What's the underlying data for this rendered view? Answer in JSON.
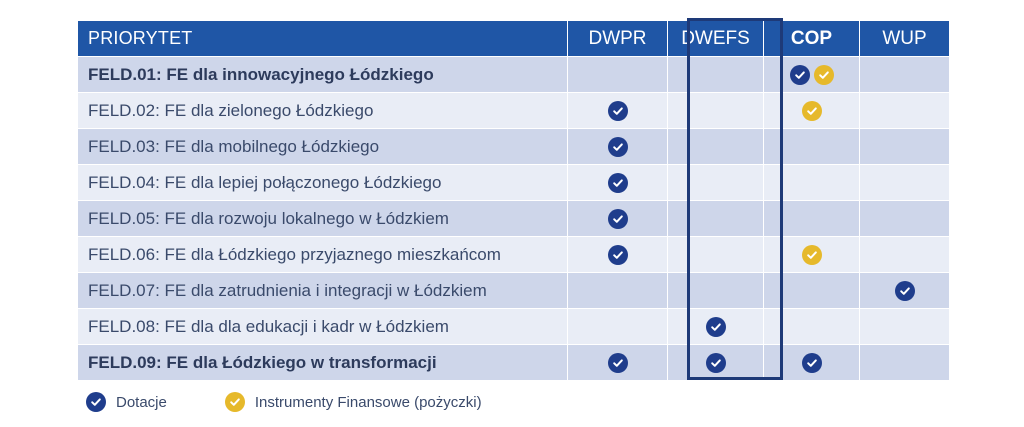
{
  "header": {
    "priorytet": "PRIORYTET",
    "dwpr": "DWPR",
    "dwefs": "DWEFS",
    "cop": "COP",
    "wup": "WUP"
  },
  "rows": [
    {
      "name": "FELD.01: FE dla innowacyjnego Łódzkiego",
      "bold": true,
      "dwpr": [],
      "dwefs": [],
      "cop": [
        "blue",
        "gold"
      ],
      "wup": []
    },
    {
      "name": "FELD.02: FE dla zielonego Łódzkiego",
      "bold": false,
      "dwpr": [
        "blue"
      ],
      "dwefs": [],
      "cop": [
        "gold"
      ],
      "wup": []
    },
    {
      "name": "FELD.03: FE dla mobilnego Łódzkiego",
      "bold": false,
      "dwpr": [
        "blue"
      ],
      "dwefs": [],
      "cop": [],
      "wup": []
    },
    {
      "name": "FELD.04: FE dla lepiej połączonego Łódzkiego",
      "bold": false,
      "dwpr": [
        "blue"
      ],
      "dwefs": [],
      "cop": [],
      "wup": []
    },
    {
      "name": "FELD.05: FE dla rozwoju lokalnego w Łódzkiem",
      "bold": false,
      "dwpr": [
        "blue"
      ],
      "dwefs": [],
      "cop": [],
      "wup": []
    },
    {
      "name": "FELD.06: FE dla Łódzkiego przyjaznego mieszkańcom",
      "bold": false,
      "dwpr": [
        "blue"
      ],
      "dwefs": [],
      "cop": [
        "gold"
      ],
      "wup": []
    },
    {
      "name": "FELD.07: FE dla zatrudnienia i integracji w Łódzkiem",
      "bold": false,
      "dwpr": [],
      "dwefs": [],
      "cop": [],
      "wup": [
        "blue"
      ]
    },
    {
      "name": "FELD.08: FE dla dla edukacji  i kadr w Łódzkiem",
      "bold": false,
      "dwpr": [],
      "dwefs": [
        "blue"
      ],
      "cop": [],
      "wup": []
    },
    {
      "name": "FELD.09: FE dla Łódzkiego w transformacji",
      "bold": true,
      "dwpr": [
        "blue"
      ],
      "dwefs": [
        "blue"
      ],
      "cop": [
        "blue"
      ],
      "wup": []
    }
  ],
  "legend": {
    "dotacje": "Dotacje",
    "instrumenty": "Instrumenty Finansowe (pożyczki)"
  },
  "colors": {
    "header_bg": "#1f56a6",
    "check_blue": "#1f3d8c",
    "check_gold": "#e6b92b",
    "row_dark": "#ced6ea",
    "row_light": "#e9edf6"
  },
  "icons": {
    "blue": "check-circle-icon",
    "gold": "check-circle-icon"
  }
}
